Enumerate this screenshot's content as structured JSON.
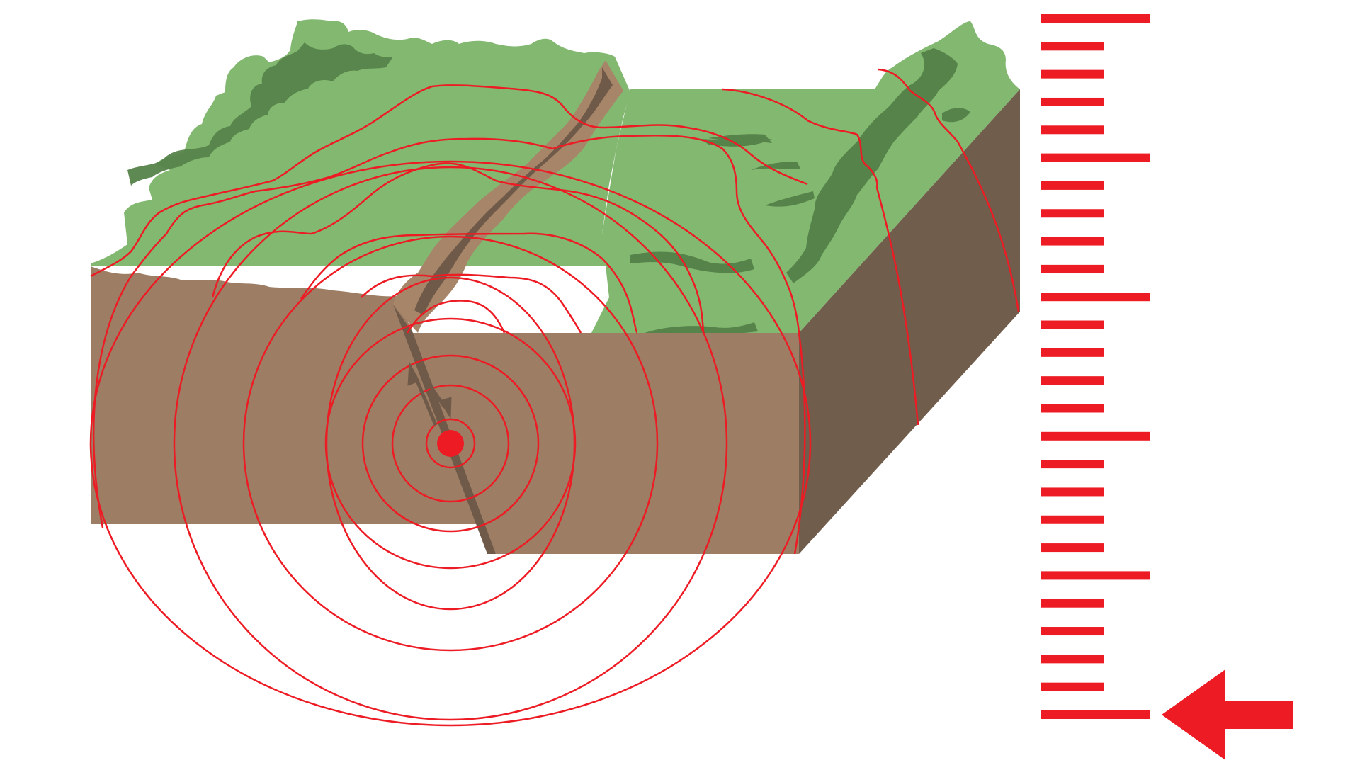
{
  "diagram": {
    "subject": "earthquake-fault-block",
    "colors": {
      "background": "#ffffff",
      "ground_light": "#83b871",
      "ground_dark": "#56834a",
      "soil_front": "#9d7e64",
      "soil_side": "#715d4c",
      "fault_brown": "#a78569",
      "fault_dark": "#6f5a49",
      "seismic_red": "#ed1c24"
    },
    "icons": {
      "focus": "earthquake-focus-dot",
      "motion": "fault-slip-arrows",
      "pointer": "red-left-arrow"
    }
  },
  "scale": {
    "tick_count": 26,
    "major_every": 5,
    "pointer_tick": 25
  }
}
